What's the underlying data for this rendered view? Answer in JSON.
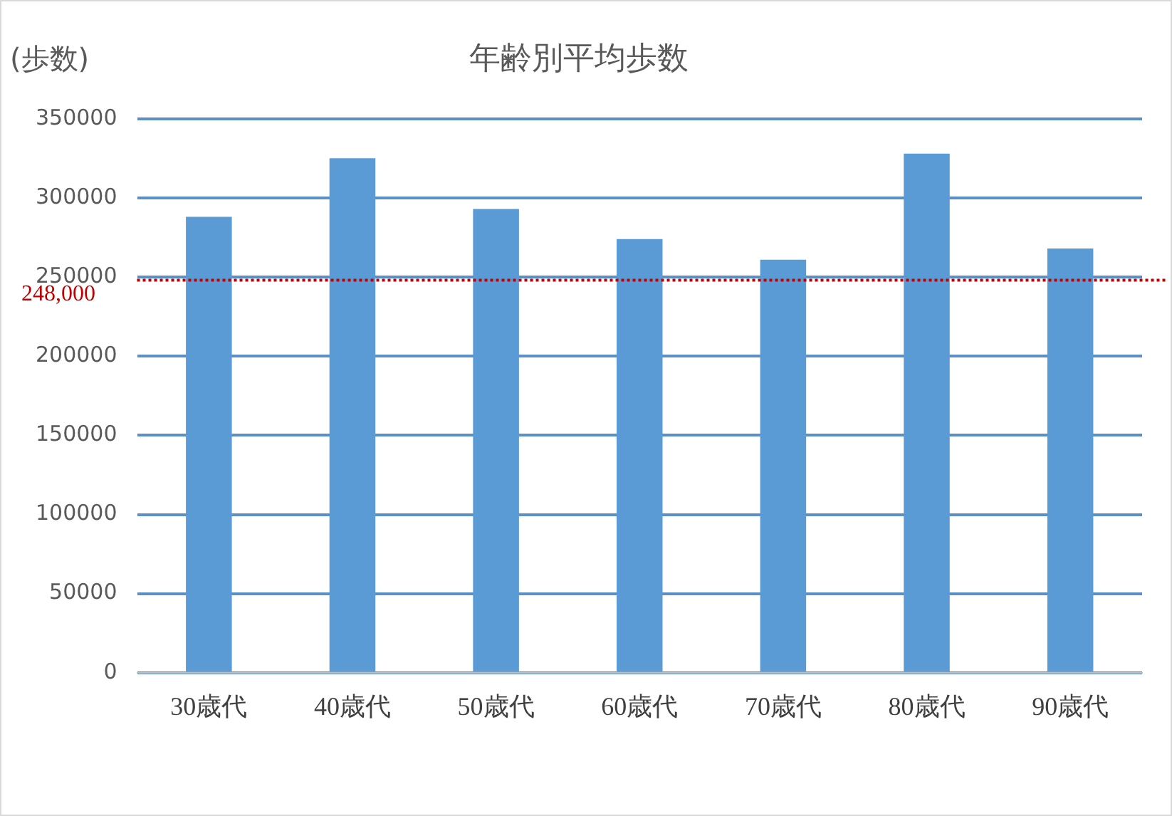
{
  "chart_data": {
    "type": "bar",
    "title": "年齢別平均歩数",
    "ylabel": "(歩数)",
    "categories": [
      "30歳代",
      "40歳代",
      "50歳代",
      "60歳代",
      "70歳代",
      "80歳代",
      "90歳代"
    ],
    "values": [
      288000,
      325000,
      293000,
      274000,
      261000,
      328000,
      268000
    ],
    "color": "#5b9bd5",
    "ylim": [
      0,
      350000
    ],
    "yticks": [
      0,
      50000,
      100000,
      150000,
      200000,
      250000,
      300000,
      350000
    ],
    "grid": "y",
    "ref_lines": [
      {
        "axis": "y",
        "value": 248000,
        "label": "248,000",
        "color": "#c00000",
        "line_style": "dotted"
      }
    ]
  }
}
